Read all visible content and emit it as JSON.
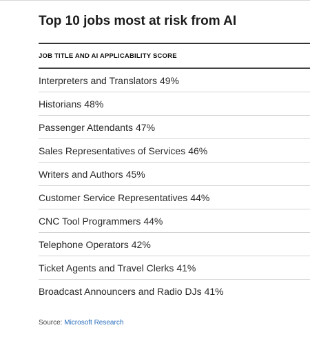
{
  "title": "Top 10 jobs most at risk from AI",
  "column_header": "JOB TITLE AND AI APPLICABILITY SCORE",
  "source_label": "Source:",
  "source_link": "Microsoft Research",
  "chart_data": {
    "type": "table",
    "title": "Top 10 jobs most at risk from AI",
    "columns": [
      "JOB TITLE AND AI APPLICABILITY SCORE"
    ],
    "rows": [
      {
        "job": "Interpreters and Translators",
        "score": "49%"
      },
      {
        "job": "Historians",
        "score": "48%"
      },
      {
        "job": "Passenger Attendants",
        "score": "47%"
      },
      {
        "job": "Sales Representatives of Services",
        "score": "46%"
      },
      {
        "job": "Writers and Authors",
        "score": "45%"
      },
      {
        "job": "Customer Service Representatives",
        "score": "44%"
      },
      {
        "job": "CNC Tool Programmers",
        "score": "44%"
      },
      {
        "job": "Telephone Operators",
        "score": "42%"
      },
      {
        "job": "Ticket Agents and Travel Clerks",
        "score": "41%"
      },
      {
        "job": "Broadcast Announcers and Radio DJs",
        "score": "41%"
      }
    ]
  }
}
